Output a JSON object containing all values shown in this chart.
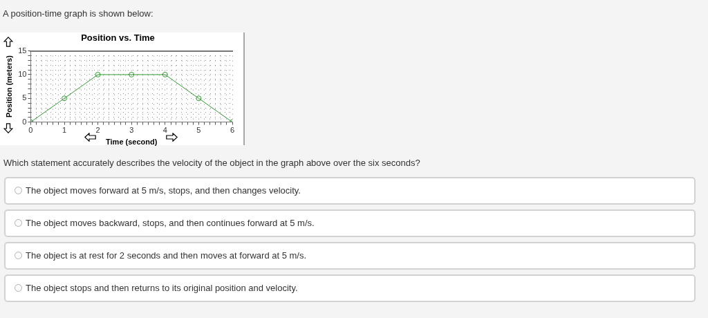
{
  "chart_data": {
    "type": "line",
    "title": "Position vs. Time",
    "xlabel": "Time (second)",
    "ylabel": "Position (meters)",
    "x": [
      0,
      1,
      2,
      3,
      4,
      5,
      6
    ],
    "series": [
      {
        "color": "#339933",
        "values": [
          0,
          5,
          10,
          10,
          10,
          5,
          0
        ]
      }
    ],
    "xlim": [
      0,
      6
    ],
    "ylim": [
      0,
      15
    ],
    "xticks": [
      0,
      {
        "value": 0.17,
        "label": null
      },
      {
        "value": 0.33,
        "label": null
      },
      {
        "value": 0.5,
        "label": null
      },
      {
        "value": 0.67,
        "label": null
      },
      {
        "value": 0.83,
        "label": null
      },
      1,
      {
        "value": 1.17,
        "label": null
      },
      {
        "value": 1.33,
        "label": null
      },
      {
        "value": 1.5,
        "label": null
      },
      {
        "value": 1.67,
        "label": null
      },
      {
        "value": 1.83,
        "label": null
      },
      2,
      {
        "value": 2.17,
        "label": null
      },
      {
        "value": 2.33,
        "label": null
      },
      {
        "value": 2.5,
        "label": null
      },
      {
        "value": 2.67,
        "label": null
      },
      {
        "value": 2.83,
        "label": null
      },
      3,
      {
        "value": 3.17,
        "label": null
      },
      {
        "value": 3.33,
        "label": null
      },
      {
        "value": 3.5,
        "label": null
      },
      {
        "value": 3.67,
        "label": null
      },
      {
        "value": 3.83,
        "label": null
      },
      4,
      {
        "value": 4.17,
        "label": null
      },
      {
        "value": 4.33,
        "label": null
      },
      {
        "value": 4.5,
        "label": null
      },
      {
        "value": 4.67,
        "label": null
      },
      {
        "value": 4.83,
        "label": null
      },
      5,
      {
        "value": 5.17,
        "label": null
      },
      {
        "value": 5.33,
        "label": null
      },
      {
        "value": 5.5,
        "label": null
      },
      {
        "value": 5.67,
        "label": null
      },
      {
        "value": 5.83,
        "label": null
      },
      6
    ],
    "yticks": [
      0,
      {
        "value": 1,
        "label": null
      },
      {
        "value": 2,
        "label": null
      },
      {
        "value": 3,
        "label": null
      },
      {
        "value": 4,
        "label": null
      },
      5,
      {
        "value": 6,
        "label": null
      },
      {
        "value": 7,
        "label": null
      },
      {
        "value": 8,
        "label": null
      },
      {
        "value": 9,
        "label": null
      },
      10,
      {
        "value": 11,
        "label": null
      },
      {
        "value": 12,
        "label": null
      },
      {
        "value": 13,
        "label": null
      },
      {
        "value": 14,
        "label": null
      },
      15
    ],
    "grid": true,
    "marker": "circle",
    "line_style": "solid",
    "annotations": [
      "A position-time graph is shown below:",
      "Which statement accurately describes the velocity of the object in the graph above over the six seconds?",
      "The object moves forward at 5 m/s, stops, and then changes velocity.",
      "The object moves backward, stops, and then continues forward at 5 m/s.",
      "The object is at rest for 2 seconds and then moves at forward at 5 m/s.",
      "The object stops and then returns to its original position and velocity."
    ]
  }
}
